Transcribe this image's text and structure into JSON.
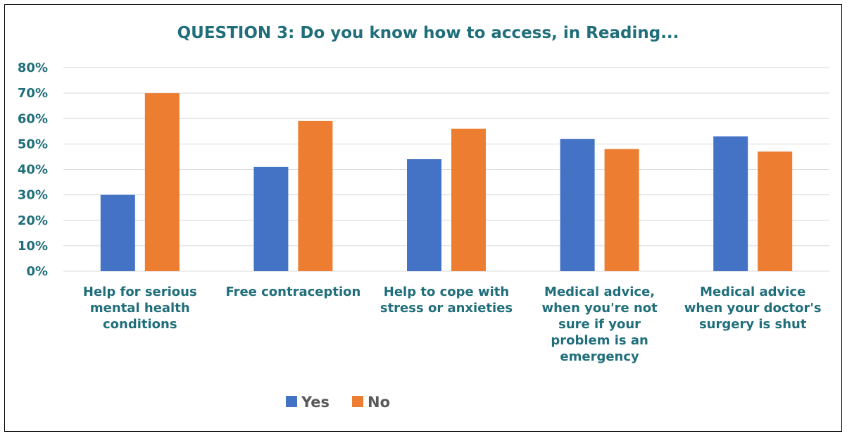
{
  "chart_data": {
    "type": "bar",
    "title": "QUESTION 3: Do you know how to access, in Reading...",
    "categories": [
      [
        "Help for serious",
        "mental health",
        "conditions"
      ],
      [
        "Free contraception"
      ],
      [
        "Help to cope with",
        "stress or anxieties"
      ],
      [
        "Medical advice,",
        "when you're not",
        "sure if your",
        "problem is an",
        "emergency"
      ],
      [
        "Medical advice",
        "when your doctor's",
        "surgery is shut"
      ]
    ],
    "series": [
      {
        "name": "Yes",
        "color": "#4472C4",
        "values": [
          30,
          41,
          44,
          52,
          53
        ]
      },
      {
        "name": "No",
        "color": "#ED7D31",
        "values": [
          70,
          59,
          56,
          48,
          47
        ]
      }
    ],
    "ylim": [
      0,
      80
    ],
    "yticks": [
      "0%",
      "10%",
      "20%",
      "30%",
      "40%",
      "50%",
      "60%",
      "70%",
      "80%"
    ],
    "grid": true,
    "legend_position": "bottom",
    "colors": {
      "text": "#1F6E7A",
      "legend_text": "#595959",
      "grid": "#D9D9D9"
    }
  }
}
